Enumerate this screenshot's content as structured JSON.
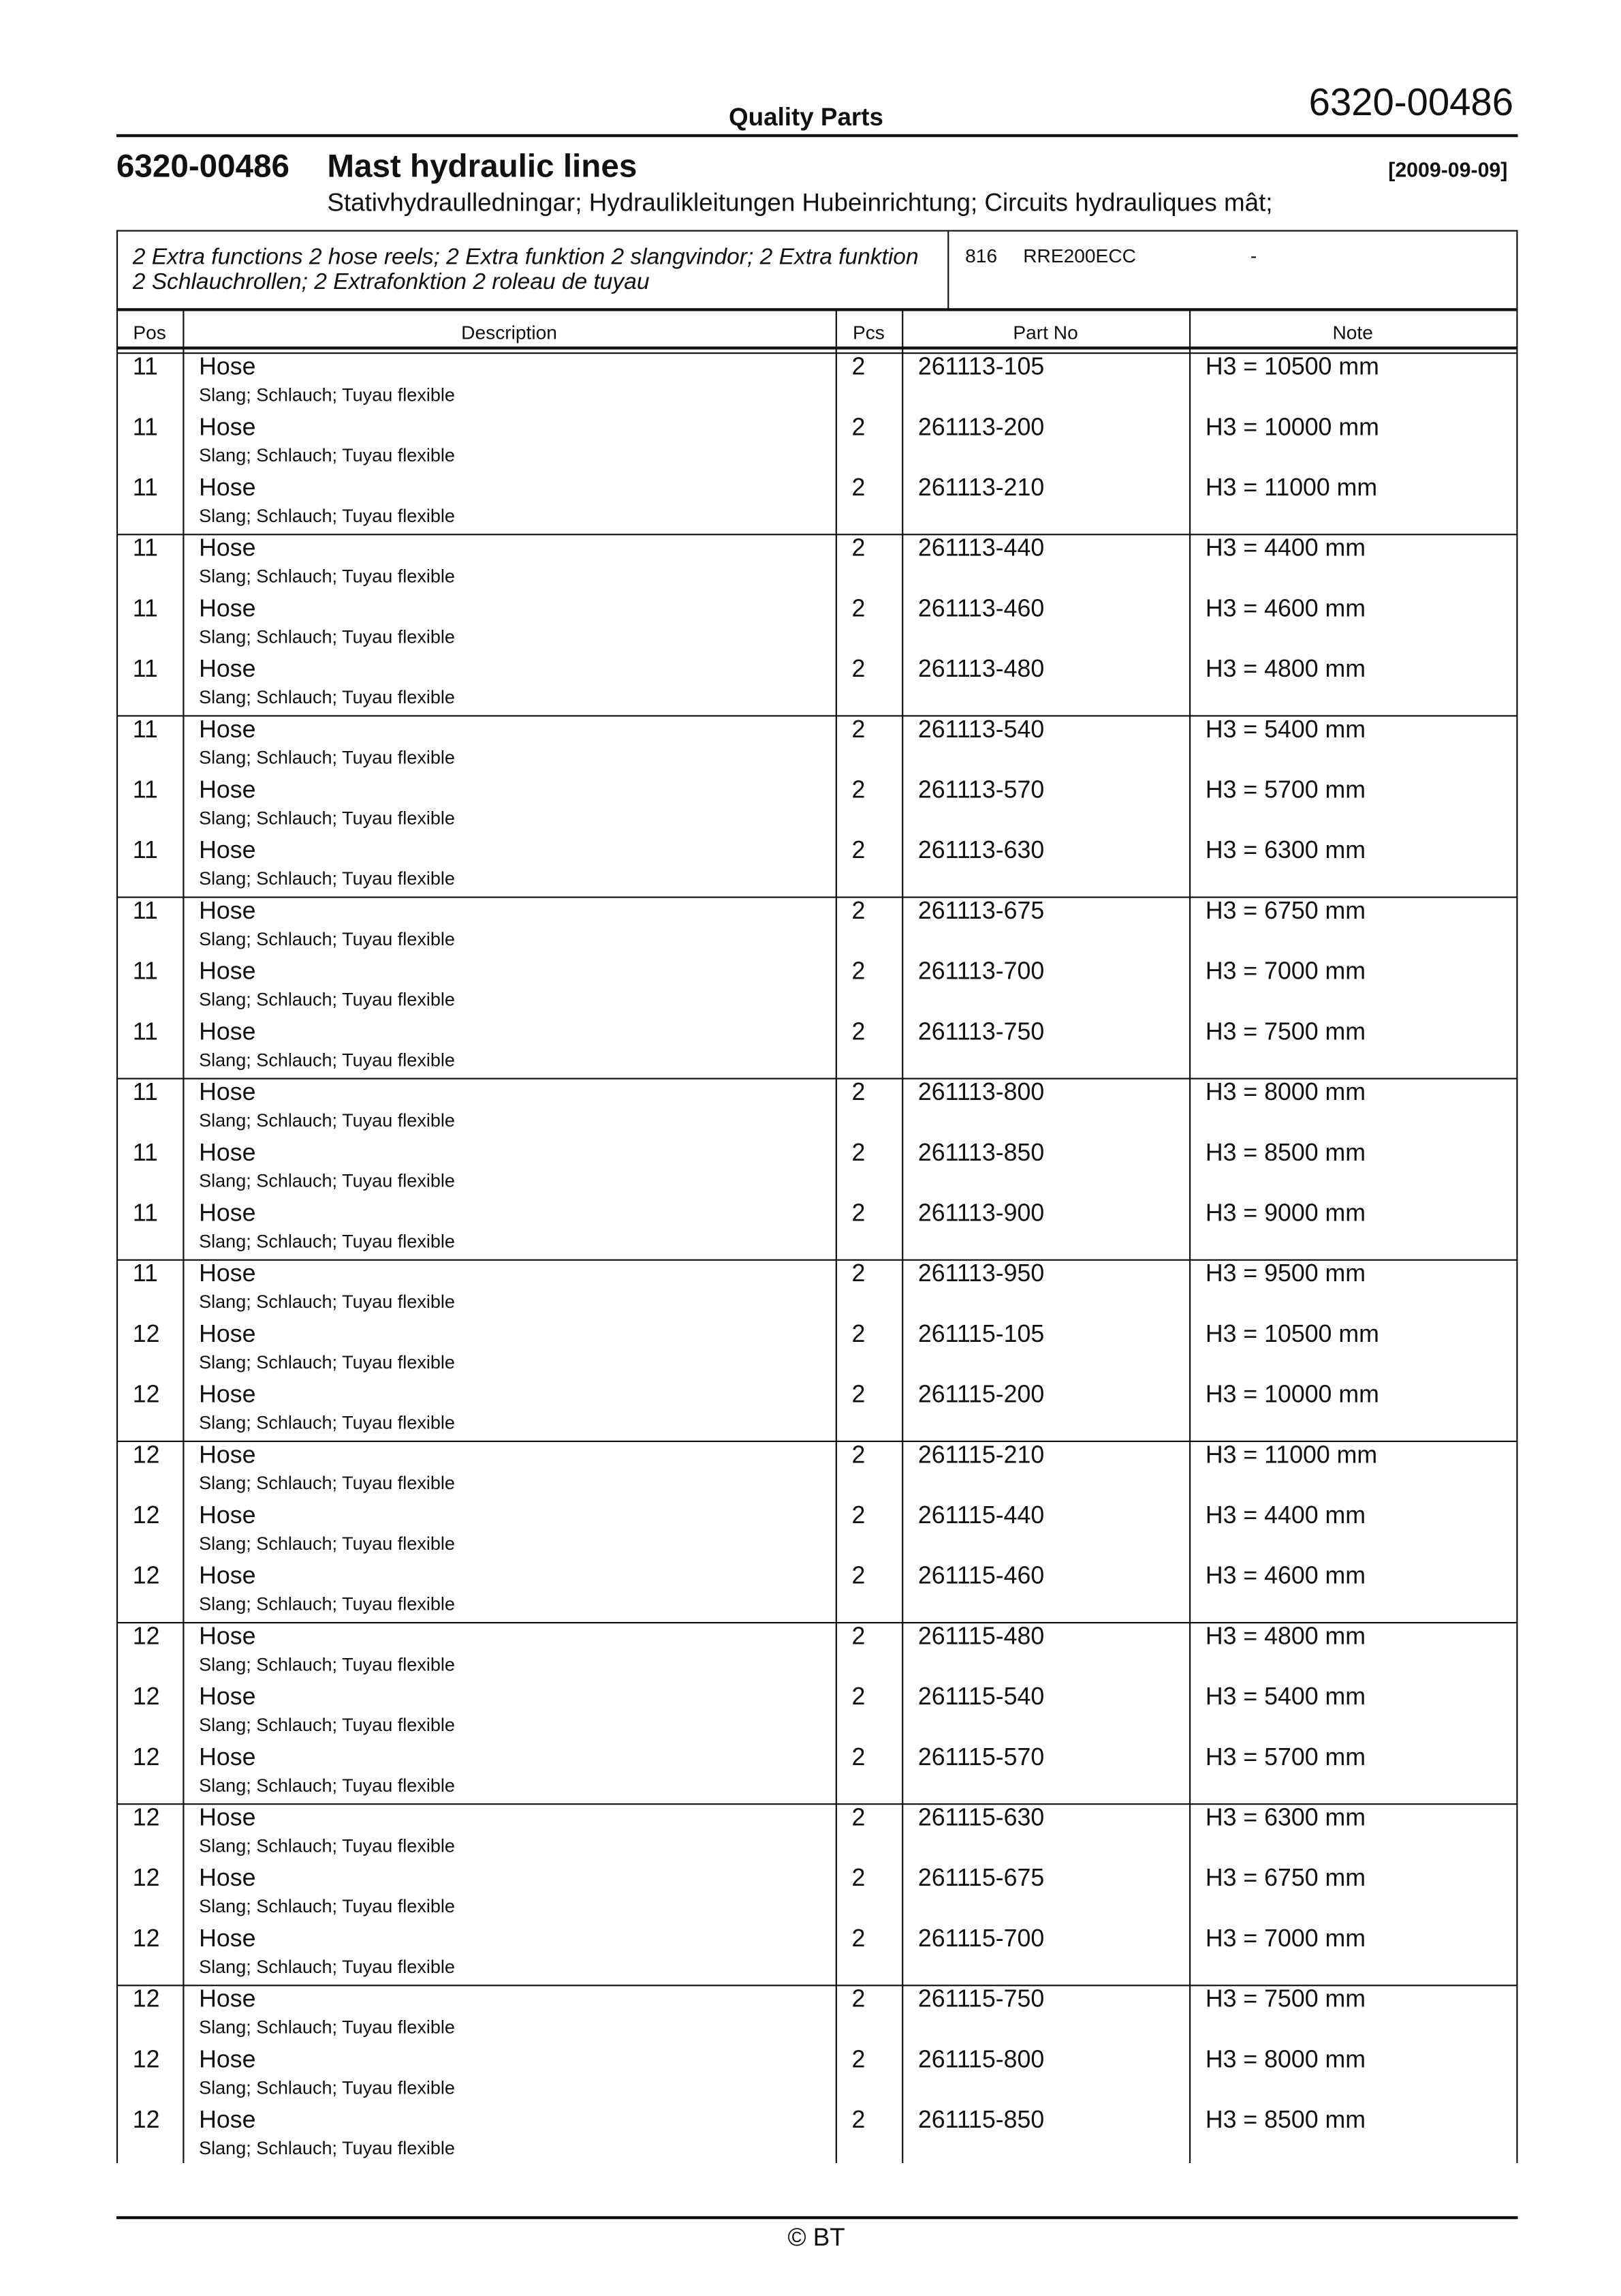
{
  "header": {
    "brand": "Quality Parts",
    "doc_number": "6320-00486"
  },
  "title": {
    "number": "6320-00486",
    "name": "Mast hydraulic lines",
    "date": "[2009-09-09]",
    "translations": "Stativhydraulledningar; Hydraulikleitungen Hubeinrichtung; Circuits hydrauliques mât;"
  },
  "variant": {
    "description": "2 Extra functions 2 hose reels; 2 Extra funktion 2 slangvindor; 2 Extra funktion 2 Schlauchrollen; 2 Extrafonktion 2 roleau de tuyau",
    "code": "816",
    "model": "RRE200ECC",
    "dash": "-"
  },
  "columns": {
    "pos": "Pos",
    "description": "Description",
    "pcs": "Pcs",
    "part_no": "Part No",
    "note": "Note"
  },
  "rows": [
    {
      "pos": "11",
      "desc": "Hose",
      "sub": "Slang; Schlauch; Tuyau flexible",
      "pcs": "2",
      "part": "261113-105",
      "note": "H3 = 10500 mm"
    },
    {
      "pos": "11",
      "desc": "Hose",
      "sub": "Slang; Schlauch; Tuyau flexible",
      "pcs": "2",
      "part": "261113-200",
      "note": "H3 = 10000 mm"
    },
    {
      "pos": "11",
      "desc": "Hose",
      "sub": "Slang; Schlauch; Tuyau flexible",
      "pcs": "2",
      "part": "261113-210",
      "note": "H3 = 11000 mm"
    },
    {
      "pos": "11",
      "desc": "Hose",
      "sub": "Slang; Schlauch; Tuyau flexible",
      "pcs": "2",
      "part": "261113-440",
      "note": "H3 = 4400 mm"
    },
    {
      "pos": "11",
      "desc": "Hose",
      "sub": "Slang; Schlauch; Tuyau flexible",
      "pcs": "2",
      "part": "261113-460",
      "note": "H3 = 4600 mm"
    },
    {
      "pos": "11",
      "desc": "Hose",
      "sub": "Slang; Schlauch; Tuyau flexible",
      "pcs": "2",
      "part": "261113-480",
      "note": "H3 = 4800 mm"
    },
    {
      "pos": "11",
      "desc": "Hose",
      "sub": "Slang; Schlauch; Tuyau flexible",
      "pcs": "2",
      "part": "261113-540",
      "note": "H3 = 5400 mm"
    },
    {
      "pos": "11",
      "desc": "Hose",
      "sub": "Slang; Schlauch; Tuyau flexible",
      "pcs": "2",
      "part": "261113-570",
      "note": "H3 = 5700 mm"
    },
    {
      "pos": "11",
      "desc": "Hose",
      "sub": "Slang; Schlauch; Tuyau flexible",
      "pcs": "2",
      "part": "261113-630",
      "note": "H3 = 6300 mm"
    },
    {
      "pos": "11",
      "desc": "Hose",
      "sub": "Slang; Schlauch; Tuyau flexible",
      "pcs": "2",
      "part": "261113-675",
      "note": "H3 = 6750 mm"
    },
    {
      "pos": "11",
      "desc": "Hose",
      "sub": "Slang; Schlauch; Tuyau flexible",
      "pcs": "2",
      "part": "261113-700",
      "note": "H3 = 7000 mm"
    },
    {
      "pos": "11",
      "desc": "Hose",
      "sub": "Slang; Schlauch; Tuyau flexible",
      "pcs": "2",
      "part": "261113-750",
      "note": "H3 = 7500 mm"
    },
    {
      "pos": "11",
      "desc": "Hose",
      "sub": "Slang; Schlauch; Tuyau flexible",
      "pcs": "2",
      "part": "261113-800",
      "note": "H3 = 8000 mm"
    },
    {
      "pos": "11",
      "desc": "Hose",
      "sub": "Slang; Schlauch; Tuyau flexible",
      "pcs": "2",
      "part": "261113-850",
      "note": "H3 = 8500 mm"
    },
    {
      "pos": "11",
      "desc": "Hose",
      "sub": "Slang; Schlauch; Tuyau flexible",
      "pcs": "2",
      "part": "261113-900",
      "note": "H3 = 9000 mm"
    },
    {
      "pos": "11",
      "desc": "Hose",
      "sub": "Slang; Schlauch; Tuyau flexible",
      "pcs": "2",
      "part": "261113-950",
      "note": "H3 = 9500 mm"
    },
    {
      "pos": "12",
      "desc": "Hose",
      "sub": "Slang; Schlauch; Tuyau flexible",
      "pcs": "2",
      "part": "261115-105",
      "note": "H3 = 10500 mm"
    },
    {
      "pos": "12",
      "desc": "Hose",
      "sub": "Slang; Schlauch; Tuyau flexible",
      "pcs": "2",
      "part": "261115-200",
      "note": "H3 = 10000 mm"
    },
    {
      "pos": "12",
      "desc": "Hose",
      "sub": "Slang; Schlauch; Tuyau flexible",
      "pcs": "2",
      "part": "261115-210",
      "note": "H3 = 11000 mm"
    },
    {
      "pos": "12",
      "desc": "Hose",
      "sub": "Slang; Schlauch; Tuyau flexible",
      "pcs": "2",
      "part": "261115-440",
      "note": "H3 = 4400 mm"
    },
    {
      "pos": "12",
      "desc": "Hose",
      "sub": "Slang; Schlauch; Tuyau flexible",
      "pcs": "2",
      "part": "261115-460",
      "note": "H3 = 4600 mm"
    },
    {
      "pos": "12",
      "desc": "Hose",
      "sub": "Slang; Schlauch; Tuyau flexible",
      "pcs": "2",
      "part": "261115-480",
      "note": "H3 = 4800 mm"
    },
    {
      "pos": "12",
      "desc": "Hose",
      "sub": "Slang; Schlauch; Tuyau flexible",
      "pcs": "2",
      "part": "261115-540",
      "note": "H3 = 5400 mm"
    },
    {
      "pos": "12",
      "desc": "Hose",
      "sub": "Slang; Schlauch; Tuyau flexible",
      "pcs": "2",
      "part": "261115-570",
      "note": "H3 = 5700 mm"
    },
    {
      "pos": "12",
      "desc": "Hose",
      "sub": "Slang; Schlauch; Tuyau flexible",
      "pcs": "2",
      "part": "261115-630",
      "note": "H3 = 6300 mm"
    },
    {
      "pos": "12",
      "desc": "Hose",
      "sub": "Slang; Schlauch; Tuyau flexible",
      "pcs": "2",
      "part": "261115-675",
      "note": "H3 = 6750 mm"
    },
    {
      "pos": "12",
      "desc": "Hose",
      "sub": "Slang; Schlauch; Tuyau flexible",
      "pcs": "2",
      "part": "261115-700",
      "note": "H3 = 7000 mm"
    },
    {
      "pos": "12",
      "desc": "Hose",
      "sub": "Slang; Schlauch; Tuyau flexible",
      "pcs": "2",
      "part": "261115-750",
      "note": "H3 = 7500 mm"
    },
    {
      "pos": "12",
      "desc": "Hose",
      "sub": "Slang; Schlauch; Tuyau flexible",
      "pcs": "2",
      "part": "261115-800",
      "note": "H3 = 8000 mm"
    },
    {
      "pos": "12",
      "desc": "Hose",
      "sub": "Slang; Schlauch; Tuyau flexible",
      "pcs": "2",
      "part": "261115-850",
      "note": "H3 = 8500 mm"
    }
  ],
  "footer": {
    "copyright": "© BT"
  }
}
